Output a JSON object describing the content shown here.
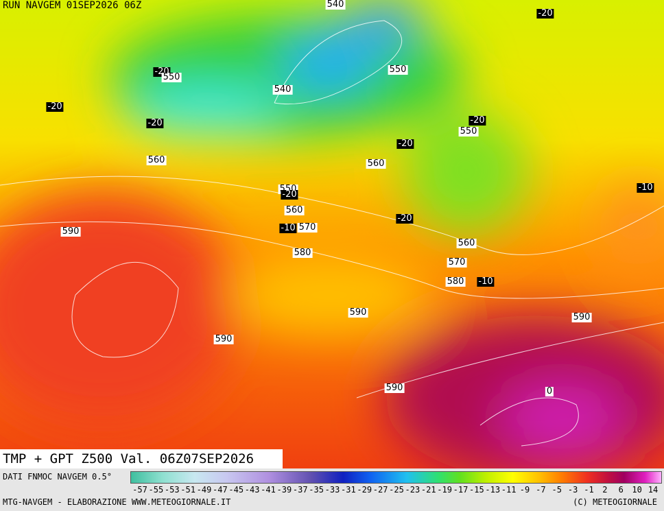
{
  "header": {
    "run": "RUN NAVGEM 01SEP2026 06Z"
  },
  "map": {
    "labels": [
      540,
      -20,
      -20,
      550,
      -20,
      540,
      550,
      -20,
      -20,
      550,
      -20,
      560,
      560,
      -10,
      550,
      -20,
      560,
      -20,
      590,
      -10,
      570,
      560,
      580,
      570,
      580,
      -10,
      590,
      590,
      590,
      590,
      0
    ]
  },
  "footer": {
    "title": "TMP + GPT Z500 Val. 06Z07SEP2026",
    "source": "DATI FNMOC NAVGEM 0.5°",
    "colorbar_labels": [
      -57,
      -55,
      -53,
      -51,
      -49,
      -47,
      -45,
      -43,
      -41,
      -39,
      -37,
      -35,
      -33,
      -31,
      -29,
      -27,
      -25,
      -23,
      -21,
      -19,
      -17,
      -15,
      -13,
      -11,
      -9,
      -7,
      -5,
      -3,
      -1,
      2,
      6,
      10,
      14
    ],
    "credit": "MTG-NAVGEM - ELABORAZIONE WWW.METEOGIORNALE.IT",
    "copyright": "(C) METEOGIORNALE"
  }
}
